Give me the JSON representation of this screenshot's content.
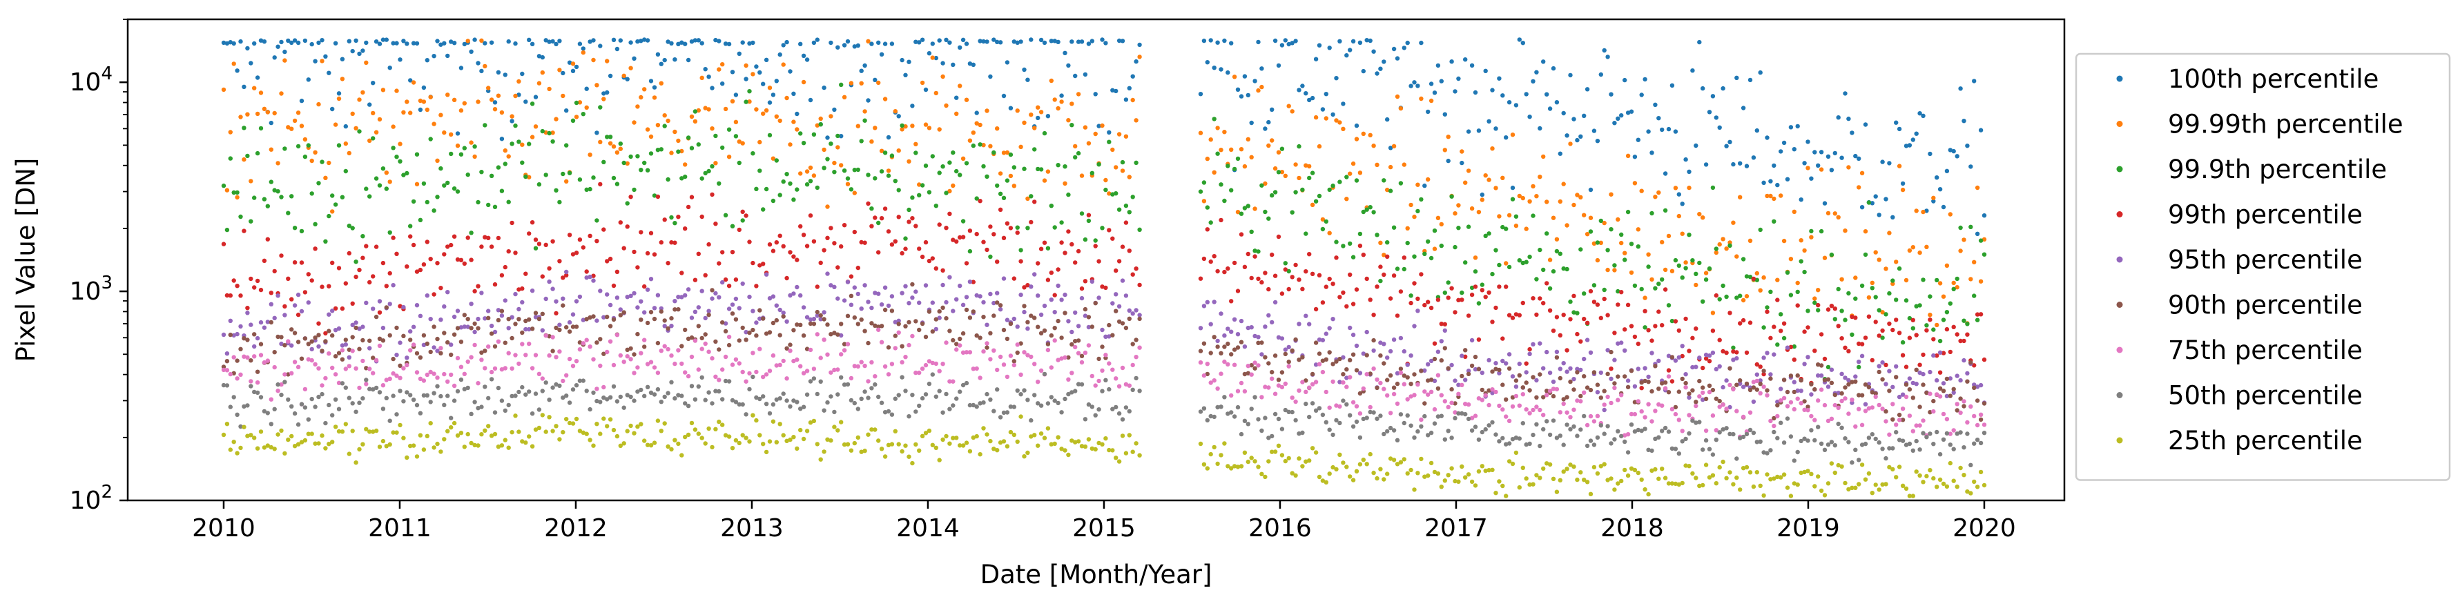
{
  "chart_data": {
    "type": "scatter",
    "xlabel": "Date [Month/Year]",
    "ylabel": "Pixel Value [DN]",
    "yscale": "log",
    "ylim": [
      100,
      20000
    ],
    "xlim": [
      "2009-06-15",
      "2020-06-15"
    ],
    "x_ticks": [
      "2010",
      "2011",
      "2012",
      "2013",
      "2014",
      "2015",
      "2016",
      "2017",
      "2018",
      "2019",
      "2020"
    ],
    "y_ticks": [
      {
        "base": "10",
        "exp": "2",
        "value": 100
      },
      {
        "base": "10",
        "exp": "3",
        "value": 1000
      },
      {
        "base": "10",
        "exp": "4",
        "value": 10000
      }
    ],
    "grid": false,
    "legend_position": "right, outside plot area",
    "data_gap": [
      "2015-03-15",
      "2015-07-15"
    ],
    "series": [
      {
        "name": "100th percentile",
        "color": "#1f77b4",
        "points": [
          [
            "2010-01",
            "14000"
          ],
          [
            "2011-01",
            "14000"
          ],
          [
            "2012-01",
            "14000"
          ],
          [
            "2013-01",
            "14000"
          ],
          [
            "2014-01",
            "14000"
          ],
          [
            "2015-01",
            "13000"
          ],
          [
            "2016-01",
            "12000"
          ],
          [
            "2017-01",
            "9000"
          ],
          [
            "2018-01",
            "7000"
          ],
          [
            "2019-01",
            "4500"
          ],
          [
            "2020-01",
            "4000"
          ]
        ]
      },
      {
        "name": "99.99th percentile",
        "color": "#ff7f0e",
        "points": [
          [
            "2010-01",
            "6000"
          ],
          [
            "2011-01",
            "6000"
          ],
          [
            "2012-01",
            "6500"
          ],
          [
            "2013-01",
            "6000"
          ],
          [
            "2014-01",
            "6000"
          ],
          [
            "2015-01",
            "5500"
          ],
          [
            "2016-01",
            "4500"
          ],
          [
            "2017-01",
            "3000"
          ],
          [
            "2018-01",
            "2000"
          ],
          [
            "2019-01",
            "1700"
          ],
          [
            "2020-01",
            "1500"
          ]
        ]
      },
      {
        "name": "99.9th percentile",
        "color": "#2ca02c",
        "points": [
          [
            "2010-01",
            "3000"
          ],
          [
            "2011-01",
            "3500"
          ],
          [
            "2012-01",
            "4000"
          ],
          [
            "2013-01",
            "4000"
          ],
          [
            "2014-01",
            "3500"
          ],
          [
            "2015-01",
            "3000"
          ],
          [
            "2016-01",
            "2800"
          ],
          [
            "2017-01",
            "1700"
          ],
          [
            "2018-01",
            "1200"
          ],
          [
            "2019-01",
            "1000"
          ],
          [
            "2020-01",
            "900"
          ]
        ]
      },
      {
        "name": "99th percentile",
        "color": "#d62728",
        "points": [
          [
            "2010-01",
            "1100"
          ],
          [
            "2011-01",
            "1200"
          ],
          [
            "2012-01",
            "1800"
          ],
          [
            "2013-01",
            "1700"
          ],
          [
            "2014-01",
            "1800"
          ],
          [
            "2015-01",
            "1500"
          ],
          [
            "2016-01",
            "1200"
          ],
          [
            "2017-01",
            "800"
          ],
          [
            "2018-01",
            "650"
          ],
          [
            "2019-01",
            "600"
          ],
          [
            "2020-01",
            "550"
          ]
        ]
      },
      {
        "name": "95th percentile",
        "color": "#9467bd",
        "points": [
          [
            "2010-01",
            "650"
          ],
          [
            "2011-01",
            "700"
          ],
          [
            "2012-01",
            "900"
          ],
          [
            "2013-01",
            "850"
          ],
          [
            "2014-01",
            "900"
          ],
          [
            "2015-01",
            "850"
          ],
          [
            "2016-01",
            "600"
          ],
          [
            "2017-01",
            "450"
          ],
          [
            "2018-01",
            "420"
          ],
          [
            "2019-01",
            "400"
          ],
          [
            "2020-01",
            "380"
          ]
        ]
      },
      {
        "name": "90th percentile",
        "color": "#8c564b",
        "points": [
          [
            "2010-01",
            "530"
          ],
          [
            "2011-01",
            "560"
          ],
          [
            "2012-01",
            "700"
          ],
          [
            "2013-01",
            "650"
          ],
          [
            "2014-01",
            "700"
          ],
          [
            "2015-01",
            "650"
          ],
          [
            "2016-01",
            "480"
          ],
          [
            "2017-01",
            "380"
          ],
          [
            "2018-01",
            "350"
          ],
          [
            "2019-01",
            "340"
          ],
          [
            "2020-01",
            "330"
          ]
        ]
      },
      {
        "name": "75th percentile",
        "color": "#e377c2",
        "points": [
          [
            "2010-01",
            "410"
          ],
          [
            "2011-01",
            "420"
          ],
          [
            "2012-01",
            "480"
          ],
          [
            "2013-01",
            "450"
          ],
          [
            "2014-01",
            "470"
          ],
          [
            "2015-01",
            "450"
          ],
          [
            "2016-01",
            "360"
          ],
          [
            "2017-01",
            "300"
          ],
          [
            "2018-01",
            "280"
          ],
          [
            "2019-01",
            "270"
          ],
          [
            "2020-01",
            "260"
          ]
        ]
      },
      {
        "name": "50th percentile",
        "color": "#7f7f7f",
        "points": [
          [
            "2010-01",
            "300"
          ],
          [
            "2011-01",
            "300"
          ],
          [
            "2012-01",
            "330"
          ],
          [
            "2013-01",
            "310"
          ],
          [
            "2014-01",
            "310"
          ],
          [
            "2015-01",
            "300"
          ],
          [
            "2016-01",
            "250"
          ],
          [
            "2017-01",
            "220"
          ],
          [
            "2018-01",
            "205"
          ],
          [
            "2019-01",
            "195"
          ],
          [
            "2020-01",
            "190"
          ]
        ]
      },
      {
        "name": "25th percentile",
        "color": "#bcbd22",
        "points": [
          [
            "2010-01",
            "195"
          ],
          [
            "2011-01",
            "195"
          ],
          [
            "2012-01",
            "215"
          ],
          [
            "2013-01",
            "200"
          ],
          [
            "2014-01",
            "195"
          ],
          [
            "2015-01",
            "190"
          ],
          [
            "2016-01",
            "150"
          ],
          [
            "2017-01",
            "135"
          ],
          [
            "2018-01",
            "128"
          ],
          [
            "2019-01",
            "124"
          ],
          [
            "2020-01",
            "120"
          ]
        ]
      }
    ]
  }
}
